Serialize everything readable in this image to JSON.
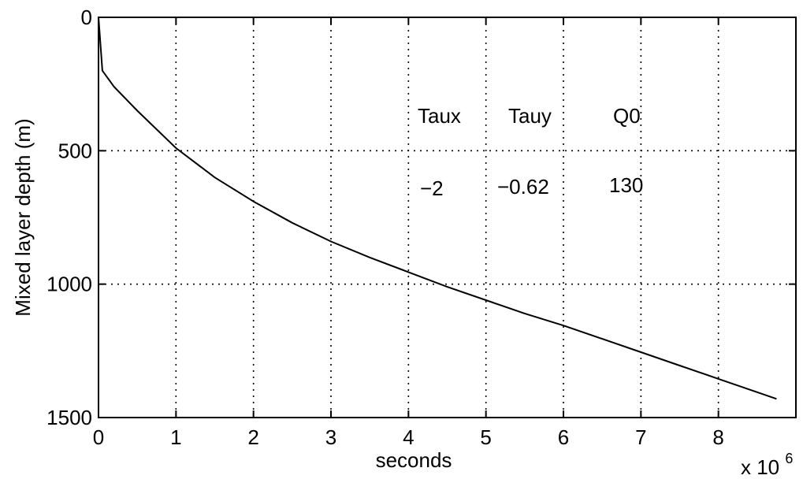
{
  "chart_data": {
    "type": "line",
    "title": "",
    "xlabel": "seconds",
    "ylabel": "Mixed layer depth (m)",
    "x_multiplier_label": "x 10",
    "x_multiplier_exponent": "6",
    "xlim": [
      0,
      9
    ],
    "ylim": [
      0,
      1500
    ],
    "y_reversed": true,
    "grid": true,
    "x_ticks": [
      0,
      1,
      2,
      3,
      4,
      5,
      6,
      7,
      8
    ],
    "x_tick_labels": [
      "0",
      "1",
      "2",
      "3",
      "4",
      "5",
      "6",
      "7",
      "8"
    ],
    "y_ticks": [
      0,
      500,
      1000,
      1500
    ],
    "y_tick_labels": [
      "0",
      "500",
      "1000",
      "1500"
    ],
    "series": [
      {
        "x": [
          0,
          0.05,
          0.2,
          0.5,
          1.0,
          1.5,
          2.0,
          2.5,
          3.0,
          3.5,
          4.0,
          4.5,
          5.0,
          5.5,
          6.0,
          6.5,
          7.0,
          7.5,
          8.0,
          8.5,
          8.75
        ],
        "y": [
          0,
          200,
          260,
          350,
          490,
          600,
          690,
          770,
          840,
          900,
          955,
          1010,
          1060,
          1110,
          1155,
          1205,
          1255,
          1305,
          1355,
          1405,
          1430
        ],
        "color": "#000000"
      }
    ],
    "annotations": {
      "headers": [
        "Taux",
        "Tauy",
        "Q0"
      ],
      "values": [
        "−2",
        "−0.62",
        "130"
      ]
    }
  }
}
